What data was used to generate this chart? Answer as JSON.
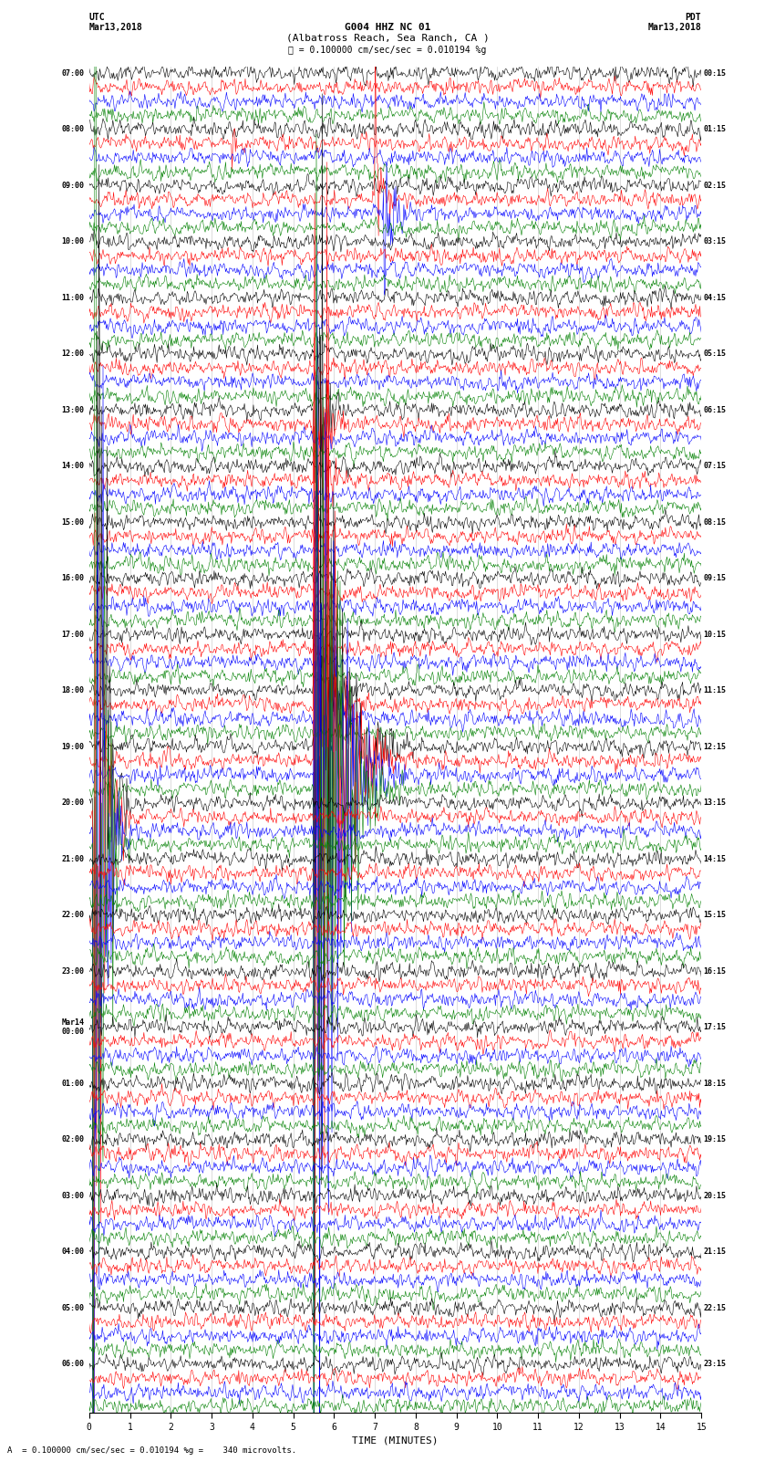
{
  "title_line1": "G004 HHZ NC 01",
  "title_line2": "(Albatross Reach, Sea Ranch, CA )",
  "scale_text": "= 0.100000 cm/sec/sec = 0.010194 %g",
  "footer_text": "A  = 0.100000 cm/sec/sec = 0.010194 %g =    340 microvolts.",
  "left_label_line1": "UTC",
  "left_label_line2": "Mar13,2018",
  "right_label_line1": "PDT",
  "right_label_line2": "Mar13,2018",
  "xlabel": "TIME (MINUTES)",
  "bg_color": "#ffffff",
  "colors": [
    "black",
    "red",
    "blue",
    "green"
  ],
  "n_minutes": 15,
  "n_hours": 24,
  "noise_scale": 0.3,
  "label_texts_left": [
    "07:00",
    "08:00",
    "09:00",
    "10:00",
    "11:00",
    "12:00",
    "13:00",
    "14:00",
    "15:00",
    "16:00",
    "17:00",
    "18:00",
    "19:00",
    "20:00",
    "21:00",
    "22:00",
    "23:00",
    "Mar14\n00:00",
    "01:00",
    "02:00",
    "03:00",
    "04:00",
    "05:00",
    "06:00"
  ],
  "label_texts_right": [
    "00:15",
    "01:15",
    "02:15",
    "03:15",
    "04:15",
    "05:15",
    "06:15",
    "07:15",
    "08:15",
    "09:15",
    "10:15",
    "11:15",
    "12:15",
    "13:15",
    "14:15",
    "15:15",
    "16:15",
    "17:15",
    "18:15",
    "19:15",
    "20:15",
    "21:15",
    "22:15",
    "23:15"
  ],
  "gridline_color": "#888888",
  "gridline_alpha": 0.5,
  "trace_lw": 0.4,
  "amp_scale": 0.38
}
